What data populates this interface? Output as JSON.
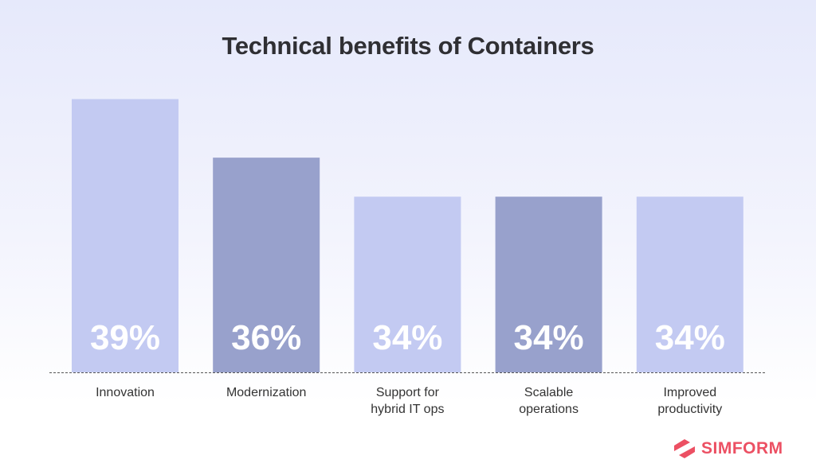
{
  "chart_data": {
    "type": "bar",
    "title": "Technical benefits of Containers",
    "categories": [
      "Innovation",
      "Modernization",
      "Support for hybrid IT ops",
      "Scalable operations",
      "Improved productivity"
    ],
    "category_lines": [
      [
        "Innovation"
      ],
      [
        "Modernization"
      ],
      [
        "Support for",
        "hybrid IT ops"
      ],
      [
        "Scalable",
        "operations"
      ],
      [
        "Improved",
        "productivity"
      ]
    ],
    "values": [
      39,
      36,
      34,
      34,
      34
    ],
    "data_labels": [
      "39%",
      "36%",
      "34%",
      "34%",
      "34%"
    ],
    "unit": "%",
    "ylim": [
      25,
      40
    ],
    "grid": false,
    "bar_colors": [
      "#c3caf2",
      "#98a1cc",
      "#c3caf2",
      "#98a1cc",
      "#c3caf2"
    ],
    "baseline_style": "dashed"
  },
  "brand": {
    "name": "SIMFORM",
    "color": "#ec5063"
  }
}
